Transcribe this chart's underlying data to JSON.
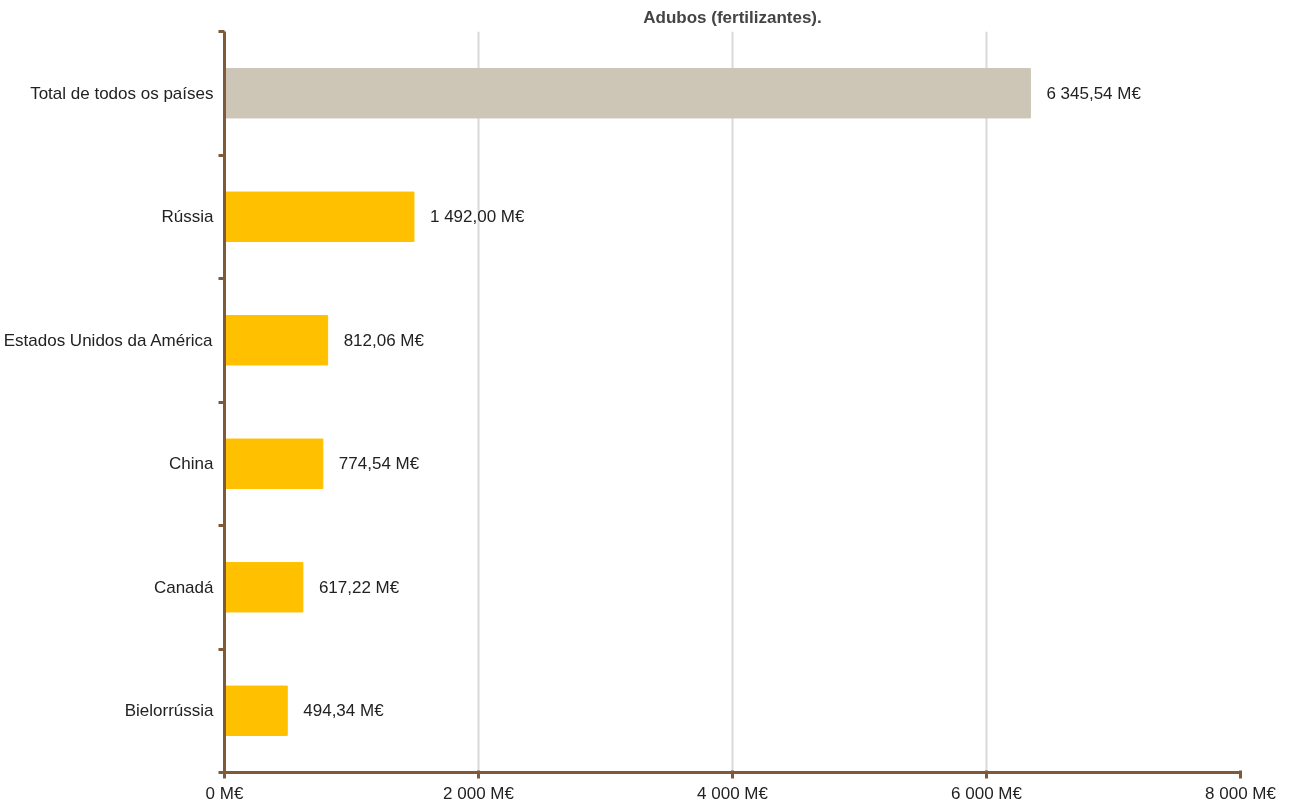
{
  "chart_data": {
    "type": "bar",
    "orientation": "horizontal",
    "title": "Adubos (fertilizantes).",
    "categories": [
      "Total de todos os países",
      "Rússia",
      "Estados Unidos da América",
      "China",
      "Canadá",
      "Bielorrússia"
    ],
    "values": [
      6345.54,
      1492.0,
      812.06,
      774.54,
      617.22,
      494.34
    ],
    "colors": [
      "#cdc5b6",
      "#ffc000",
      "#ffc000",
      "#ffc000",
      "#ffc000",
      "#ffc000"
    ],
    "value_labels": [
      "6 345,54 M€",
      "1 492,00 M€",
      "812,06 M€",
      "774,54 M€",
      "617,22 M€",
      "494,34 M€"
    ],
    "xlim": [
      0,
      8000
    ],
    "xticks": [
      {
        "value": 0,
        "label": "0 M€"
      },
      {
        "value": 2000,
        "label": "2 000 M€"
      },
      {
        "value": 4000,
        "label": "4 000 M€"
      },
      {
        "value": 6000,
        "label": "6 000 M€"
      },
      {
        "value": 8000,
        "label": "8 000 M€"
      }
    ],
    "grid": "x"
  }
}
